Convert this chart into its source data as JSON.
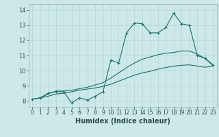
{
  "xlabel": "Humidex (Indice chaleur)",
  "background_color": "#cce8e8",
  "grid_color": "#b8d8d8",
  "line_color": "#1a6e6a",
  "xlim": [
    -0.5,
    23.5
  ],
  "ylim": [
    7.6,
    14.4
  ],
  "xticks": [
    0,
    1,
    2,
    3,
    4,
    5,
    6,
    7,
    8,
    9,
    10,
    11,
    12,
    13,
    14,
    15,
    16,
    17,
    18,
    19,
    20,
    21,
    22,
    23
  ],
  "yticks": [
    8,
    9,
    10,
    11,
    12,
    13,
    14
  ],
  "series1_x": [
    0,
    1,
    2,
    3,
    4,
    5,
    6,
    7,
    8,
    9,
    10,
    11,
    12,
    13,
    14,
    15,
    16,
    17,
    18,
    19,
    20,
    21,
    22,
    23
  ],
  "series1_y": [
    8.1,
    8.2,
    8.5,
    8.6,
    8.6,
    7.85,
    8.2,
    8.05,
    8.3,
    8.6,
    10.7,
    10.5,
    12.5,
    13.15,
    13.1,
    12.5,
    12.5,
    12.85,
    13.8,
    13.1,
    13.0,
    11.0,
    10.8,
    10.35
  ],
  "series2_x": [
    0,
    1,
    2,
    3,
    4,
    5,
    6,
    7,
    8,
    9,
    10,
    11,
    12,
    13,
    14,
    15,
    16,
    17,
    18,
    19,
    20,
    21,
    22,
    23
  ],
  "series2_y": [
    8.1,
    8.2,
    8.45,
    8.65,
    8.65,
    8.7,
    8.8,
    8.9,
    9.05,
    9.2,
    9.5,
    9.85,
    10.2,
    10.5,
    10.75,
    10.9,
    11.05,
    11.15,
    11.2,
    11.3,
    11.3,
    11.1,
    10.8,
    10.4
  ],
  "series3_x": [
    0,
    1,
    2,
    3,
    4,
    5,
    6,
    7,
    8,
    9,
    10,
    11,
    12,
    13,
    14,
    15,
    16,
    17,
    18,
    19,
    20,
    21,
    22,
    23
  ],
  "series3_y": [
    8.1,
    8.2,
    8.3,
    8.45,
    8.5,
    8.6,
    8.7,
    8.78,
    8.85,
    8.95,
    9.1,
    9.3,
    9.5,
    9.7,
    9.85,
    9.95,
    10.1,
    10.2,
    10.3,
    10.35,
    10.38,
    10.3,
    10.22,
    10.3
  ]
}
